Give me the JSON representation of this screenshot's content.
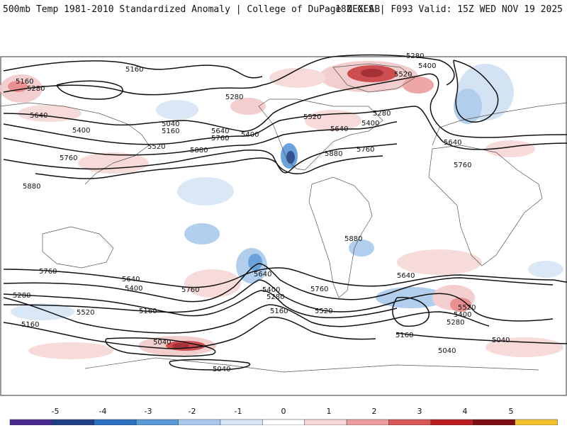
{
  "header": {
    "title_left": "500mb Temp 1981-2010 Standardized Anomaly | College of DuPage NEXLAB",
    "title_right": "18Z GFS | F093 Valid: 15Z WED NOV 19 2025"
  },
  "contours": [
    {
      "id": "c1",
      "label": "5160"
    },
    {
      "id": "c2",
      "label": "5160"
    },
    {
      "id": "c3",
      "label": "5280"
    },
    {
      "id": "c4",
      "label": "5640"
    },
    {
      "id": "c5",
      "label": "5400"
    },
    {
      "id": "c6",
      "label": "5040"
    },
    {
      "id": "c7",
      "label": "5160"
    },
    {
      "id": "c8",
      "label": "5520"
    },
    {
      "id": "c9",
      "label": "5640"
    },
    {
      "id": "c10",
      "label": "5760"
    },
    {
      "id": "c11",
      "label": "5400"
    },
    {
      "id": "c12",
      "label": "5880"
    },
    {
      "id": "c13",
      "label": "5280"
    },
    {
      "id": "c14",
      "label": "5520"
    },
    {
      "id": "c15",
      "label": "5640"
    },
    {
      "id": "c16",
      "label": "5400"
    },
    {
      "id": "c17",
      "label": "5280"
    },
    {
      "id": "c18",
      "label": "5880"
    },
    {
      "id": "c19",
      "label": "5760"
    },
    {
      "id": "c20",
      "label": "5400"
    },
    {
      "id": "c21",
      "label": "5520"
    },
    {
      "id": "c22",
      "label": "5280"
    },
    {
      "id": "c23",
      "label": "5640"
    },
    {
      "id": "c24",
      "label": "5760"
    },
    {
      "id": "c25",
      "label": "5760"
    },
    {
      "id": "c26",
      "label": "5880"
    },
    {
      "id": "c27",
      "label": "5880"
    },
    {
      "id": "c28",
      "label": "5760"
    },
    {
      "id": "c29",
      "label": "5640"
    },
    {
      "id": "c30",
      "label": "5400"
    },
    {
      "id": "c31",
      "label": "5280"
    },
    {
      "id": "c32",
      "label": "5520"
    },
    {
      "id": "c33",
      "label": "5160"
    },
    {
      "id": "c34",
      "label": "5760"
    },
    {
      "id": "c35",
      "label": "5640"
    },
    {
      "id": "c36",
      "label": "5400"
    },
    {
      "id": "c37",
      "label": "5280"
    },
    {
      "id": "c38",
      "label": "5160"
    },
    {
      "id": "c39",
      "label": "5520"
    },
    {
      "id": "c40",
      "label": "5760"
    },
    {
      "id": "c41",
      "label": "5640"
    },
    {
      "id": "c42",
      "label": "5520"
    },
    {
      "id": "c43",
      "label": "5400"
    },
    {
      "id": "c44",
      "label": "5280"
    },
    {
      "id": "c45",
      "label": "5160"
    },
    {
      "id": "c46",
      "label": "5040"
    },
    {
      "id": "c47",
      "label": "5040"
    },
    {
      "id": "c48",
      "label": "5040"
    },
    {
      "id": "c49",
      "label": "5160"
    },
    {
      "id": "c50",
      "label": "5040"
    }
  ],
  "colorbar": {
    "ticks": [
      "-5",
      "-4",
      "-3",
      "-2",
      "-1",
      "0",
      "1",
      "2",
      "3",
      "4",
      "5"
    ],
    "colors": [
      "#4b2a8f",
      "#1f3f85",
      "#2a6fc0",
      "#5a9ad8",
      "#a9c9ec",
      "#d6e6f6",
      "#ffffff",
      "#f7d6d6",
      "#ec9e9e",
      "#d85656",
      "#bb1c24",
      "#7d0f14",
      "#f2c12e"
    ]
  }
}
